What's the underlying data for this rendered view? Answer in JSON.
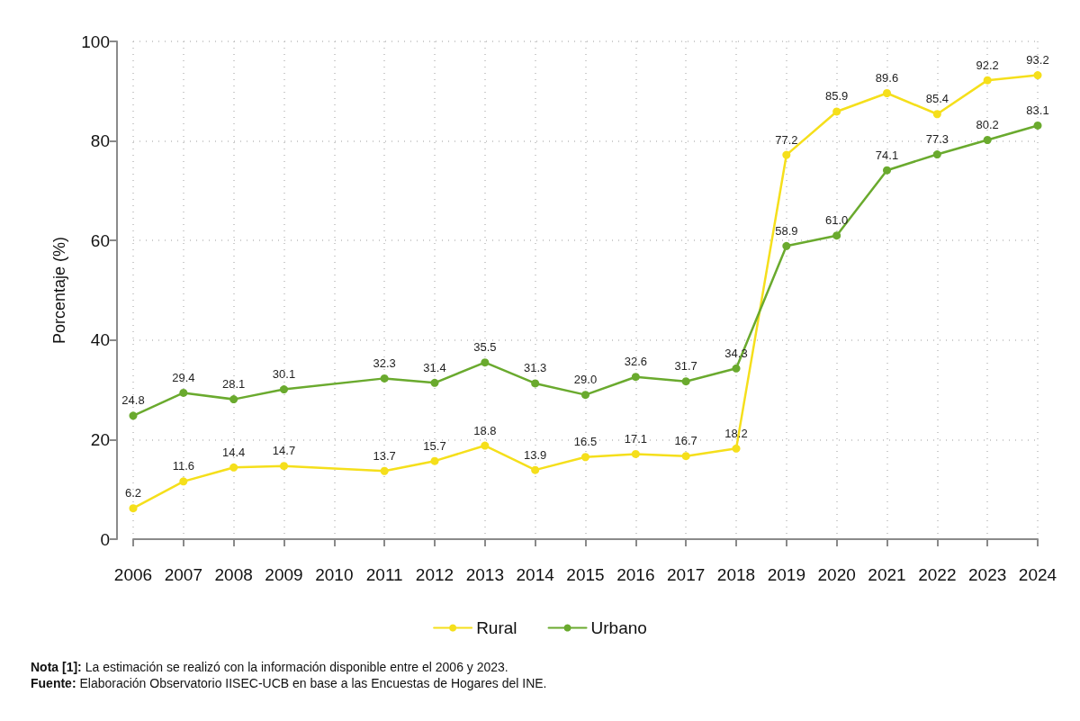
{
  "chart_data": {
    "type": "line",
    "ylabel": "Porcentaje (%)",
    "annotations": [
      "Nota [1]: La estimación se realizó con la información disponible entre el 2006 y 2023.",
      "Fuente: Elaboración Observatorio IISEC-UCB en base a las Encuestas de Hogares del INE."
    ],
    "x": [
      2006,
      2007,
      2008,
      2009,
      2011,
      2012,
      2013,
      2014,
      2015,
      2016,
      2017,
      2018,
      2019,
      2020,
      2021,
      2022,
      2023,
      2024
    ],
    "series": [
      {
        "name": "Rural",
        "color": "#f5df1b",
        "values": [
          6.2,
          11.6,
          14.4,
          14.7,
          13.7,
          15.7,
          18.8,
          13.9,
          16.5,
          17.1,
          16.7,
          18.2,
          77.2,
          85.9,
          89.6,
          85.4,
          92.2,
          93.2
        ],
        "value_labels": [
          "6.2",
          "11.6",
          "14.4",
          "14.7",
          "13.7",
          "15.7",
          "18.8",
          "13.9",
          "16.5",
          "17.1",
          "16.7",
          "18.2",
          "77.2",
          "85.9",
          "89.6",
          "85.4",
          "92.2",
          "93.2"
        ]
      },
      {
        "name": "Urbano",
        "color": "#6aaa2e",
        "values": [
          24.8,
          29.4,
          28.1,
          30.1,
          32.3,
          31.4,
          35.5,
          31.3,
          29.0,
          32.6,
          31.7,
          34.3,
          58.9,
          61.0,
          74.1,
          77.3,
          80.2,
          83.1
        ],
        "value_labels": [
          "24.8",
          "29.4",
          "28.1",
          "30.1",
          "32.3",
          "31.4",
          "35.5",
          "31.3",
          "29.0",
          "32.6",
          "31.7",
          "34.3",
          "58.9",
          "61.0",
          "74.1",
          "77.3",
          "80.2",
          "83.1"
        ]
      }
    ],
    "xlim": [
      2006,
      2024
    ],
    "xticks": [
      2006,
      2007,
      2008,
      2009,
      2010,
      2011,
      2012,
      2013,
      2014,
      2015,
      2016,
      2017,
      2018,
      2019,
      2020,
      2021,
      2022,
      2023,
      2024
    ],
    "ylim": [
      0,
      100
    ],
    "yticks": [
      0,
      20,
      40,
      60,
      80,
      100
    ],
    "grid": true,
    "legend": "bottom",
    "marker": "circle",
    "line_style": "solid"
  }
}
